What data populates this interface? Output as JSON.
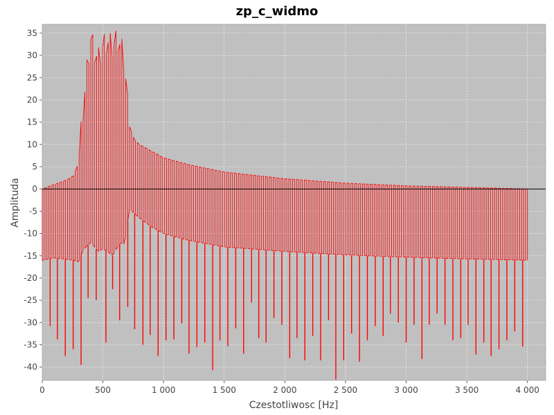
{
  "chart_data": {
    "type": "line",
    "title": "zp_c_widmo",
    "xlabel": "Czestotliwosc [Hz]",
    "ylabel": "Amplituda",
    "xlim": [
      0,
      4150
    ],
    "ylim": [
      -43,
      37
    ],
    "grid": true,
    "legend": "none",
    "colors": {
      "plot_bg": "#c0c0c0",
      "series": "#ff0000",
      "grid": "#ffffff",
      "zero_line": "#000000"
    },
    "x_ticks": [
      {
        "value": 0,
        "label": "0"
      },
      {
        "value": 500,
        "label": "500"
      },
      {
        "value": 1000,
        "label": "1 000"
      },
      {
        "value": 1500,
        "label": "1 500"
      },
      {
        "value": 2000,
        "label": "2 000"
      },
      {
        "value": 2500,
        "label": "2 500"
      },
      {
        "value": 3000,
        "label": "3 000"
      },
      {
        "value": 3500,
        "label": "3 500"
      },
      {
        "value": 4000,
        "label": "4 000"
      }
    ],
    "y_ticks": [
      {
        "value": 35,
        "label": "35"
      },
      {
        "value": 30,
        "label": "30"
      },
      {
        "value": 25,
        "label": "25"
      },
      {
        "value": 20,
        "label": "20"
      },
      {
        "value": 15,
        "label": "15"
      },
      {
        "value": 10,
        "label": "10"
      },
      {
        "value": 5,
        "label": "5"
      },
      {
        "value": 0,
        "label": "0"
      },
      {
        "value": -5,
        "label": "-5"
      },
      {
        "value": -10,
        "label": "-10"
      },
      {
        "value": -15,
        "label": "-15"
      },
      {
        "value": -20,
        "label": "-20"
      },
      {
        "value": -25,
        "label": "-25"
      },
      {
        "value": -30,
        "label": "-30"
      },
      {
        "value": -35,
        "label": "-35"
      },
      {
        "value": -40,
        "label": "-40"
      }
    ],
    "series": [
      {
        "x": [
          0,
          100,
          200,
          260,
          300,
          330,
          360,
          380,
          400,
          430,
          460,
          500,
          540,
          580,
          620,
          650,
          680,
          700,
          720,
          760,
          800,
          900,
          1000,
          1200,
          1500,
          2000,
          2500,
          3000,
          3500,
          4000
        ],
        "upper": [
          0,
          1,
          2,
          3,
          6,
          16,
          24,
          30,
          33.5,
          31,
          29,
          32,
          33,
          32,
          33.5,
          32,
          28,
          20,
          14,
          11,
          10,
          8.5,
          7,
          5.5,
          3.8,
          2.3,
          1.3,
          0.7,
          0.35,
          0
        ],
        "lower": [
          -16,
          -15.5,
          -15.8,
          -16,
          -16.5,
          -14,
          -13,
          -12.5,
          -12,
          -13,
          -14,
          -13.5,
          -14,
          -15,
          -13,
          -12,
          -12.5,
          -8,
          -4.5,
          -5.5,
          -6.5,
          -8.5,
          -10,
          -11.5,
          -13,
          -14,
          -14.8,
          -15.3,
          -15.7,
          -16
        ],
        "spikes": [
          {
            "x": 65,
            "y": -30.8
          },
          {
            "x": 125,
            "y": -33.8
          },
          {
            "x": 190,
            "y": -37.5
          },
          {
            "x": 255,
            "y": -36
          },
          {
            "x": 320,
            "y": -39.5
          },
          {
            "x": 378,
            "y": -24.5
          },
          {
            "x": 445,
            "y": -25
          },
          {
            "x": 525,
            "y": -34.5
          },
          {
            "x": 580,
            "y": -22.5
          },
          {
            "x": 638,
            "y": -29.5
          },
          {
            "x": 705,
            "y": -26.5
          },
          {
            "x": 762,
            "y": -31.5
          },
          {
            "x": 830,
            "y": -35
          },
          {
            "x": 890,
            "y": -32.8
          },
          {
            "x": 955,
            "y": -37.5
          },
          {
            "x": 1020,
            "y": -34
          },
          {
            "x": 1085,
            "y": -33.8
          },
          {
            "x": 1150,
            "y": -30.2
          },
          {
            "x": 1210,
            "y": -37
          },
          {
            "x": 1275,
            "y": -35.5
          },
          {
            "x": 1340,
            "y": -34.5
          },
          {
            "x": 1405,
            "y": -40.7
          },
          {
            "x": 1465,
            "y": -34
          },
          {
            "x": 1530,
            "y": -35.3
          },
          {
            "x": 1595,
            "y": -31.3
          },
          {
            "x": 1660,
            "y": -37
          },
          {
            "x": 1725,
            "y": -25.5
          },
          {
            "x": 1785,
            "y": -33.5
          },
          {
            "x": 1845,
            "y": -34.5
          },
          {
            "x": 1910,
            "y": -29
          },
          {
            "x": 1975,
            "y": -30.5
          },
          {
            "x": 2040,
            "y": -38
          },
          {
            "x": 2100,
            "y": -33.5
          },
          {
            "x": 2165,
            "y": -38.5
          },
          {
            "x": 2230,
            "y": -33
          },
          {
            "x": 2295,
            "y": -38.5
          },
          {
            "x": 2360,
            "y": -29.5
          },
          {
            "x": 2420,
            "y": -42.8
          },
          {
            "x": 2485,
            "y": -38.5
          },
          {
            "x": 2550,
            "y": -32.5
          },
          {
            "x": 2615,
            "y": -38.8
          },
          {
            "x": 2680,
            "y": -34
          },
          {
            "x": 2745,
            "y": -30.8
          },
          {
            "x": 2810,
            "y": -33
          },
          {
            "x": 2870,
            "y": -28
          },
          {
            "x": 2935,
            "y": -30
          },
          {
            "x": 3000,
            "y": -34.5
          },
          {
            "x": 3065,
            "y": -30.5
          },
          {
            "x": 3130,
            "y": -38.2
          },
          {
            "x": 3190,
            "y": -30.5
          },
          {
            "x": 3255,
            "y": -28
          },
          {
            "x": 3320,
            "y": -30.5
          },
          {
            "x": 3385,
            "y": -34
          },
          {
            "x": 3450,
            "y": -33.5
          },
          {
            "x": 3510,
            "y": -30.5
          },
          {
            "x": 3575,
            "y": -37.2
          },
          {
            "x": 3640,
            "y": -34.5
          },
          {
            "x": 3700,
            "y": -37.5
          },
          {
            "x": 3765,
            "y": -36
          },
          {
            "x": 3830,
            "y": -34
          },
          {
            "x": 3895,
            "y": -32
          },
          {
            "x": 3960,
            "y": -35.4
          }
        ]
      }
    ]
  }
}
